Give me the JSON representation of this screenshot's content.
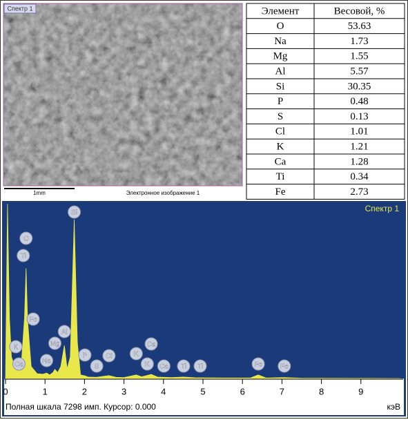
{
  "image": {
    "tag": "Спектр 1",
    "scale_bar": "1mm",
    "caption": "Электронное изображение 1"
  },
  "table": {
    "header": [
      "Элемент",
      "Весовой, %"
    ],
    "rows": [
      [
        "O",
        53.63
      ],
      [
        "Na",
        1.73
      ],
      [
        "Mg",
        1.55
      ],
      [
        "Al",
        5.57
      ],
      [
        "Si",
        30.35
      ],
      [
        "P",
        0.48
      ],
      [
        "S",
        0.13
      ],
      [
        "Cl",
        1.01
      ],
      [
        "K",
        1.21
      ],
      [
        "Ca",
        1.28
      ],
      [
        "Ti",
        0.34
      ],
      [
        "Fe",
        2.73
      ]
    ]
  },
  "chart_data": {
    "type": "area",
    "title": "Спектр 1",
    "status": "Полная шкала 7298 имп. Курсор: 0.000",
    "x_label": "кэВ",
    "color": "#e8e84a",
    "x": [
      0,
      0.05,
      0.1,
      0.15,
      0.25,
      0.4,
      0.48,
      0.52,
      0.56,
      0.65,
      0.8,
      0.95,
      1.04,
      1.12,
      1.2,
      1.25,
      1.32,
      1.4,
      1.49,
      1.56,
      1.64,
      1.74,
      1.82,
      1.9,
      2.01,
      2.1,
      2.3,
      2.62,
      2.8,
      3.0,
      3.31,
      3.45,
      3.69,
      3.85,
      4.2,
      4.51,
      4.8,
      5.5,
      6.2,
      6.4,
      6.6,
      7.06,
      7.5,
      8,
      9,
      10
    ],
    "values": [
      0,
      7298,
      2500,
      900,
      400,
      600,
      2500,
      4600,
      2400,
      500,
      200,
      180,
      230,
      150,
      250,
      380,
      250,
      500,
      1380,
      400,
      900,
      6640,
      1500,
      150,
      110,
      60,
      50,
      120,
      50,
      40,
      150,
      70,
      170,
      60,
      40,
      60,
      30,
      20,
      20,
      150,
      20,
      40,
      10,
      10,
      5,
      0
    ],
    "xlim": [
      0,
      10
    ],
    "ylim": [
      0,
      7298
    ],
    "xticks": [
      0,
      1,
      2,
      3,
      4,
      5,
      6,
      7,
      8,
      9
    ],
    "peak_labels": [
      {
        "label": "Si",
        "x": 1.74
      },
      {
        "label": "O",
        "x": 0.52
      },
      {
        "label": "Ti",
        "x": 0.45
      },
      {
        "label": "Fe",
        "x": 0.7
      },
      {
        "label": "Al",
        "x": 1.49
      },
      {
        "label": "Mg",
        "x": 1.25
      },
      {
        "label": "K",
        "x": 0.26
      },
      {
        "label": "Ca",
        "x": 0.34
      },
      {
        "label": "Na",
        "x": 1.04
      },
      {
        "label": "P",
        "x": 2.01
      },
      {
        "label": "S",
        "x": 2.31
      },
      {
        "label": "Cl",
        "x": 2.62
      },
      {
        "label": "K",
        "x": 3.31
      },
      {
        "label": "Ca",
        "x": 3.69
      },
      {
        "label": "K",
        "x": 3.59
      },
      {
        "label": "Ca",
        "x": 4.01
      },
      {
        "label": "Ti",
        "x": 4.51
      },
      {
        "label": "Ti",
        "x": 4.93
      },
      {
        "label": "Fe",
        "x": 6.4
      },
      {
        "label": "Fe",
        "x": 7.06
      }
    ]
  }
}
